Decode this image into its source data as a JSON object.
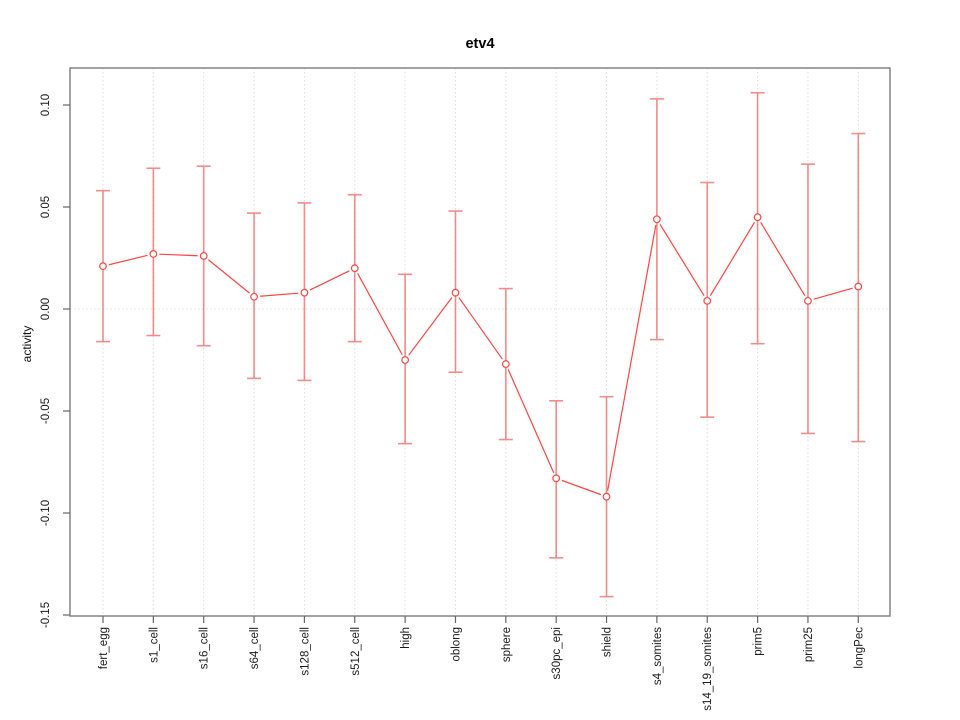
{
  "chart_data": {
    "type": "line",
    "title": "etv4",
    "xlabel": "",
    "ylabel": "activity",
    "legend": "none",
    "marker": "open-circle",
    "categories": [
      "fert_egg",
      "s1_cell",
      "s16_cell",
      "s64_cell",
      "s128_cell",
      "s512_cell",
      "high",
      "oblong",
      "sphere",
      "s30pc_epi",
      "shield",
      "s4_somites",
      "s14_19_somites",
      "prim5",
      "prim25",
      "longPec"
    ],
    "series": [
      {
        "name": "etv4",
        "values": [
          0.021,
          0.027,
          0.026,
          0.006,
          0.008,
          0.02,
          -0.025,
          0.008,
          -0.027,
          -0.083,
          -0.092,
          0.044,
          0.004,
          0.045,
          0.004,
          0.011
        ],
        "error_low": [
          -0.016,
          -0.013,
          -0.018,
          -0.034,
          -0.035,
          -0.016,
          -0.066,
          -0.031,
          -0.064,
          -0.122,
          -0.141,
          -0.015,
          -0.053,
          -0.017,
          -0.061,
          -0.065
        ],
        "error_high": [
          0.058,
          0.069,
          0.07,
          0.047,
          0.052,
          0.056,
          0.017,
          0.048,
          0.01,
          -0.045,
          -0.043,
          0.103,
          0.062,
          0.106,
          0.071,
          0.086
        ]
      }
    ],
    "ylim": [
      -0.15,
      0.118
    ],
    "yticks": [
      0.1,
      0.05,
      0.0,
      -0.05,
      -0.1,
      -0.15
    ],
    "ytick_labels": [
      "0.10",
      "0.05",
      "0.00",
      "-0.05",
      "-0.10",
      "-0.15"
    ],
    "grid": {
      "vertical_dotted_per_category": true,
      "horizontal_dotted_zero_line": true,
      "horizontal_gridlines": false
    }
  },
  "colors": {
    "series_line": "#ff4545",
    "marker_stroke": "#ff4545",
    "marker_fill": "#ffffff",
    "error_bar": "#f17878",
    "gridline": "#dcdcdc",
    "plot_border": "#8c8c8c",
    "axis_tick": "#666666",
    "tick_text": "#1a1a1a",
    "title_text": "#000000"
  }
}
